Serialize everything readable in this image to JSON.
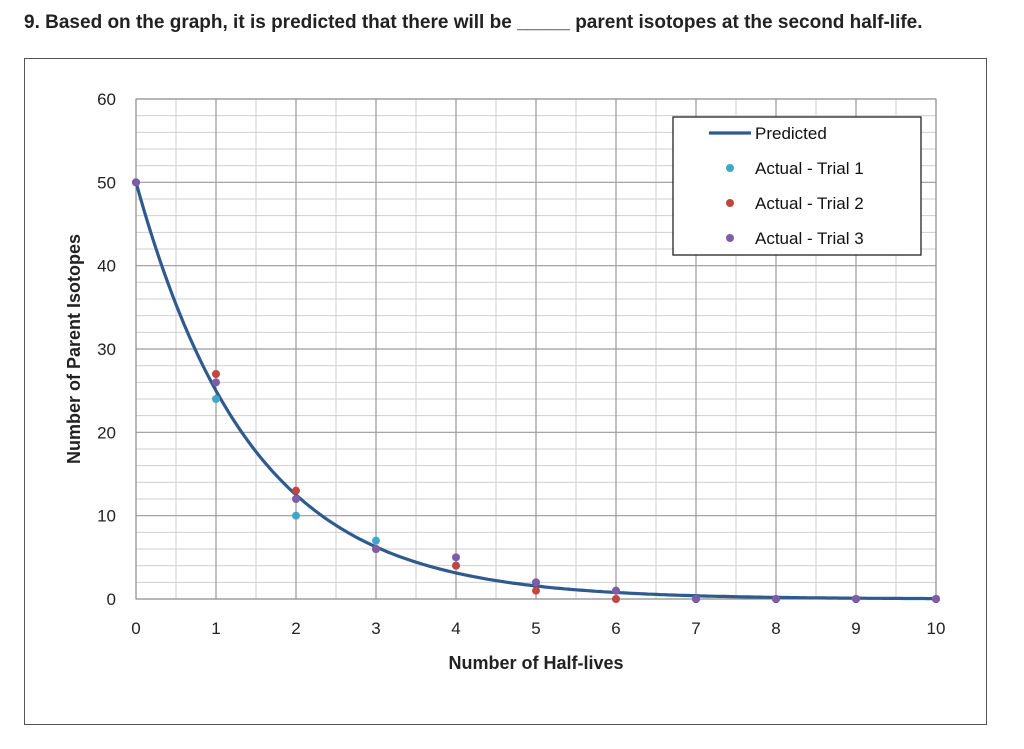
{
  "question": {
    "number": "9.",
    "text_before": "Based on the graph, it is predicted that there will be",
    "blank": "_____",
    "text_after": "parent isotopes at the second half-life."
  },
  "chart_data": {
    "type": "line",
    "title": "",
    "xlabel": "Number of Half-lives",
    "ylabel": "Number of Parent Isotopes",
    "xlim": [
      0,
      10
    ],
    "ylim": [
      0,
      60
    ],
    "x_ticks": [
      0,
      1,
      2,
      3,
      4,
      5,
      6,
      7,
      8,
      9,
      10
    ],
    "y_ticks": [
      0,
      10,
      20,
      30,
      40,
      50,
      60
    ],
    "grid": true,
    "legend_position": "top-right",
    "series": [
      {
        "name": "Predicted",
        "type": "line",
        "color": "#2f5a8f",
        "x": [
          0,
          1,
          2,
          3,
          4,
          5,
          6,
          7,
          8,
          9,
          10
        ],
        "y": [
          50,
          25,
          12.5,
          6.25,
          3.13,
          1.56,
          0.78,
          0.39,
          0.2,
          0.1,
          0.05
        ]
      },
      {
        "name": "Actual - Trial 1",
        "type": "scatter",
        "color": "#3fa7c9",
        "x": [
          0,
          1,
          2,
          3,
          4,
          5,
          6,
          7,
          8,
          9,
          10
        ],
        "y": [
          50,
          24,
          10,
          7,
          4,
          2,
          1,
          0,
          0,
          0,
          0
        ]
      },
      {
        "name": "Actual - Trial 2",
        "type": "scatter",
        "color": "#c0463e",
        "x": [
          0,
          1,
          2,
          3,
          4,
          5,
          6,
          7,
          8,
          9,
          10
        ],
        "y": [
          50,
          27,
          13,
          6,
          4,
          1,
          0,
          0,
          0,
          0,
          0
        ]
      },
      {
        "name": "Actual - Trial 3",
        "type": "scatter",
        "color": "#7b5ea7",
        "x": [
          0,
          1,
          2,
          3,
          4,
          5,
          6,
          7,
          8,
          9,
          10
        ],
        "y": [
          50,
          26,
          12,
          6,
          5,
          2,
          1,
          0,
          0,
          0,
          0
        ]
      }
    ]
  }
}
